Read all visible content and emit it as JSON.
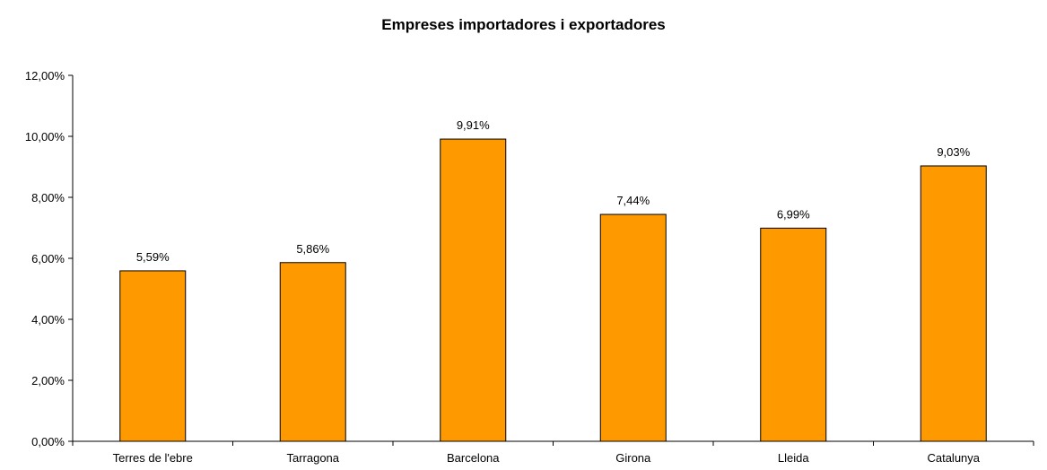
{
  "chart_data": {
    "type": "bar",
    "title": "Empreses importadores i exportadores",
    "categories": [
      "Terres de l'ebre",
      "Tarragona",
      "Barcelona",
      "Girona",
      "Lleida",
      "Catalunya"
    ],
    "values": [
      5.59,
      5.86,
      9.91,
      7.44,
      6.99,
      9.03
    ],
    "value_labels": [
      "5,59%",
      "5,86%",
      "9,91%",
      "7,44%",
      "6,99%",
      "9,03%"
    ],
    "y_ticks": [
      0,
      2,
      4,
      6,
      8,
      10,
      12
    ],
    "y_tick_labels": [
      "0,00%",
      "2,00%",
      "4,00%",
      "6,00%",
      "8,00%",
      "10,00%",
      "12,00%"
    ],
    "ylim": [
      0,
      12
    ],
    "grid": false,
    "legend": "none",
    "bar_color": "#FF9900"
  }
}
